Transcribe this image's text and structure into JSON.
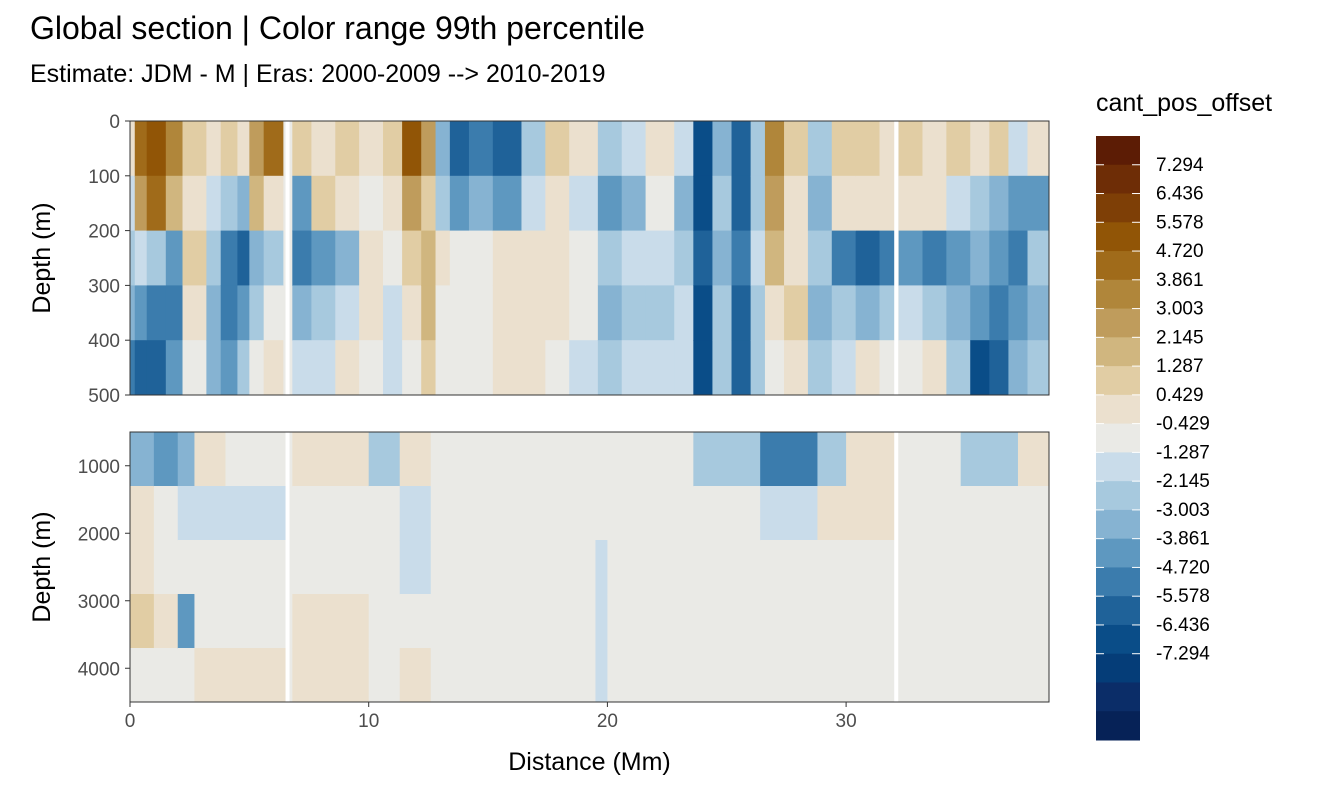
{
  "header": {
    "title": "Global section | Color range 99th percentile",
    "subtitle": "Estimate: JDM - M | Eras: 2000-2009 --> 2010-2019"
  },
  "chart_data": {
    "type": "heatmap",
    "title": "Global section | Color range 99th percentile",
    "subtitle": "Estimate: JDM - M | Eras: 2000-2009 --> 2010-2019",
    "xlabel": "Distance (Mm)",
    "ylabel": "Depth (m)",
    "xlim": [
      0,
      38.5
    ],
    "x_ticks": [
      0,
      10,
      20,
      30
    ],
    "panels": [
      {
        "name": "upper",
        "ylim": [
          0,
          500
        ],
        "y_ticks": [
          0,
          100,
          200,
          300,
          400,
          500
        ],
        "y_reversed": true
      },
      {
        "name": "lower",
        "ylim": [
          500,
          4500
        ],
        "y_ticks": [
          1000,
          2000,
          3000,
          4000
        ],
        "y_reversed": true
      }
    ],
    "legend": {
      "title": "cant_pos_offset",
      "position": "right",
      "labels": [
        "7.294",
        "6.436",
        "5.578",
        "4.720",
        "3.861",
        "3.003",
        "2.145",
        "1.287",
        "0.429",
        "-0.429",
        "-1.287",
        "-2.145",
        "-3.003",
        "-3.861",
        "-4.720",
        "-5.578",
        "-6.436",
        "-7.294"
      ],
      "colors": [
        "#5c1c05",
        "#6e2d06",
        "#7e3f06",
        "#915506",
        "#a06b1a",
        "#b0863a",
        "#bf9c5c",
        "#d0b67f",
        "#e1cda4",
        "#ebe0ce",
        "#eaeae6",
        "#c9dcea",
        "#a7c9de",
        "#86b3d2",
        "#5e98c0",
        "#3b7cad",
        "#1f6299",
        "#0a4d88",
        "#053d78",
        "#0b2d68",
        "#062257"
      ]
    },
    "column_breaks_x": [
      6.6,
      32.1
    ],
    "upper_columns": [
      {
        "x0": 0.0,
        "x1": 0.2,
        "values": [
          1,
          -1,
          -2,
          -3,
          -5
        ]
      },
      {
        "x0": 0.2,
        "x1": 0.7,
        "values": [
          6,
          4,
          -1,
          -4,
          -6
        ]
      },
      {
        "x0": 0.7,
        "x1": 1.5,
        "values": [
          7,
          6,
          -2,
          -5,
          -6
        ]
      },
      {
        "x0": 1.5,
        "x1": 2.2,
        "values": [
          5,
          3,
          -4,
          -5,
          -4
        ]
      },
      {
        "x0": 2.2,
        "x1": 3.2,
        "values": [
          2,
          1,
          2,
          1,
          0
        ]
      },
      {
        "x0": 3.2,
        "x1": 3.8,
        "values": [
          1,
          -1,
          -2,
          -3,
          -3
        ]
      },
      {
        "x0": 3.8,
        "x1": 4.5,
        "values": [
          2,
          -2,
          -5,
          -5,
          -4
        ]
      },
      {
        "x0": 4.5,
        "x1": 5.0,
        "values": [
          1,
          -3,
          -6,
          -4,
          -2
        ]
      },
      {
        "x0": 5.0,
        "x1": 5.6,
        "values": [
          4,
          3,
          -3,
          -2,
          0
        ]
      },
      {
        "x0": 5.6,
        "x1": 6.4,
        "values": [
          6,
          1,
          -2,
          0,
          1
        ]
      },
      {
        "x0": 6.8,
        "x1": 7.6,
        "values": [
          2,
          -4,
          -5,
          -3,
          -1
        ]
      },
      {
        "x0": 7.6,
        "x1": 8.6,
        "values": [
          1,
          2,
          -4,
          -2,
          -1
        ]
      },
      {
        "x0": 8.6,
        "x1": 9.6,
        "values": [
          2,
          1,
          -3,
          -1,
          1
        ]
      },
      {
        "x0": 9.6,
        "x1": 10.6,
        "values": [
          1,
          0,
          1,
          1,
          0
        ]
      },
      {
        "x0": 10.6,
        "x1": 11.4,
        "values": [
          2,
          1,
          0,
          -1,
          -1
        ]
      },
      {
        "x0": 11.4,
        "x1": 12.2,
        "values": [
          7,
          4,
          2,
          1,
          0
        ]
      },
      {
        "x0": 12.2,
        "x1": 12.8,
        "values": [
          4,
          2,
          3,
          3,
          2
        ]
      },
      {
        "x0": 12.8,
        "x1": 13.4,
        "values": [
          -3,
          -2,
          1,
          0,
          0
        ]
      },
      {
        "x0": 13.4,
        "x1": 14.2,
        "values": [
          -6,
          -4,
          0,
          0,
          0
        ]
      },
      {
        "x0": 14.2,
        "x1": 15.2,
        "values": [
          -5,
          -3,
          0,
          0,
          0
        ]
      },
      {
        "x0": 15.2,
        "x1": 16.4,
        "values": [
          -6,
          -4,
          1,
          1,
          1
        ]
      },
      {
        "x0": 16.4,
        "x1": 17.4,
        "values": [
          -2,
          -1,
          1,
          1,
          1
        ]
      },
      {
        "x0": 17.4,
        "x1": 18.4,
        "values": [
          2,
          1,
          1,
          1,
          0
        ]
      },
      {
        "x0": 18.4,
        "x1": 19.6,
        "values": [
          1,
          -1,
          0,
          0,
          -1
        ]
      },
      {
        "x0": 19.6,
        "x1": 20.6,
        "values": [
          -2,
          -4,
          -2,
          -3,
          -2
        ]
      },
      {
        "x0": 20.6,
        "x1": 21.6,
        "values": [
          -1,
          -3,
          -1,
          -2,
          -1
        ]
      },
      {
        "x0": 21.6,
        "x1": 22.8,
        "values": [
          1,
          0,
          -1,
          -2,
          -1
        ]
      },
      {
        "x0": 22.8,
        "x1": 23.6,
        "values": [
          -1,
          -3,
          -2,
          -1,
          -1
        ]
      },
      {
        "x0": 23.6,
        "x1": 24.4,
        "values": [
          -7,
          -7,
          -6,
          -7,
          -7
        ]
      },
      {
        "x0": 24.4,
        "x1": 25.2,
        "values": [
          -3,
          -2,
          -3,
          -2,
          -2
        ]
      },
      {
        "x0": 25.2,
        "x1": 26.0,
        "values": [
          -6,
          -6,
          -5,
          -6,
          -6
        ]
      },
      {
        "x0": 26.0,
        "x1": 26.6,
        "values": [
          -2,
          -2,
          -1,
          -2,
          -2
        ]
      },
      {
        "x0": 26.6,
        "x1": 27.4,
        "values": [
          5,
          4,
          3,
          1,
          0
        ]
      },
      {
        "x0": 27.4,
        "x1": 28.4,
        "values": [
          2,
          1,
          1,
          2,
          1
        ]
      },
      {
        "x0": 28.4,
        "x1": 29.4,
        "values": [
          -2,
          -3,
          -2,
          -3,
          -2
        ]
      },
      {
        "x0": 29.4,
        "x1": 30.4,
        "values": [
          2,
          1,
          -5,
          -2,
          -1
        ]
      },
      {
        "x0": 30.4,
        "x1": 31.4,
        "values": [
          2,
          1,
          -6,
          -3,
          1
        ]
      },
      {
        "x0": 31.4,
        "x1": 32.0,
        "values": [
          1,
          1,
          -5,
          -2,
          0
        ]
      },
      {
        "x0": 32.2,
        "x1": 33.2,
        "values": [
          2,
          1,
          -4,
          -1,
          0
        ]
      },
      {
        "x0": 33.2,
        "x1": 34.2,
        "values": [
          1,
          1,
          -5,
          -2,
          1
        ]
      },
      {
        "x0": 34.2,
        "x1": 35.2,
        "values": [
          2,
          -1,
          -4,
          -3,
          -2
        ]
      },
      {
        "x0": 35.2,
        "x1": 36.0,
        "values": [
          1,
          -2,
          -3,
          -4,
          -7
        ]
      },
      {
        "x0": 36.0,
        "x1": 36.8,
        "values": [
          2,
          -3,
          -4,
          -5,
          -6
        ]
      },
      {
        "x0": 36.8,
        "x1": 37.6,
        "values": [
          -1,
          -4,
          -5,
          -4,
          -3
        ]
      },
      {
        "x0": 37.6,
        "x1": 38.5,
        "values": [
          1,
          -4,
          -2,
          -3,
          -2
        ]
      }
    ],
    "lower_columns": [
      {
        "x0": 0.0,
        "x1": 1.0,
        "values": [
          -3,
          1,
          1,
          2,
          0
        ]
      },
      {
        "x0": 1.0,
        "x1": 2.0,
        "values": [
          -4,
          0,
          0,
          1,
          0
        ]
      },
      {
        "x0": 2.0,
        "x1": 2.7,
        "values": [
          -3,
          -1,
          0,
          -4,
          0
        ]
      },
      {
        "x0": 2.7,
        "x1": 4.0,
        "values": [
          1,
          -1,
          0,
          0,
          1
        ]
      },
      {
        "x0": 4.0,
        "x1": 6.6,
        "values": [
          0,
          -1,
          0,
          0,
          1
        ]
      },
      {
        "x0": 6.8,
        "x1": 10.0,
        "values": [
          1,
          0,
          0,
          1,
          1
        ]
      },
      {
        "x0": 10.0,
        "x1": 11.3,
        "values": [
          -2,
          0,
          0,
          0,
          0
        ]
      },
      {
        "x0": 11.3,
        "x1": 12.6,
        "values": [
          1,
          -1,
          -1,
          0,
          1
        ]
      },
      {
        "x0": 12.6,
        "x1": 19.5,
        "values": [
          0,
          0,
          0,
          0,
          0
        ]
      },
      {
        "x0": 19.5,
        "x1": 20.0,
        "values": [
          0,
          0,
          -1,
          -1,
          -1
        ]
      },
      {
        "x0": 20.0,
        "x1": 23.6,
        "values": [
          0,
          0,
          0,
          0,
          0
        ]
      },
      {
        "x0": 23.6,
        "x1": 26.4,
        "values": [
          -2,
          0,
          0,
          0,
          0
        ]
      },
      {
        "x0": 26.4,
        "x1": 28.8,
        "values": [
          -5,
          -1,
          0,
          0,
          0
        ]
      },
      {
        "x0": 28.8,
        "x1": 30.0,
        "values": [
          -2,
          1,
          0,
          0,
          0
        ]
      },
      {
        "x0": 30.0,
        "x1": 32.0,
        "values": [
          1,
          1,
          0,
          0,
          0
        ]
      },
      {
        "x0": 32.2,
        "x1": 34.8,
        "values": [
          0,
          0,
          0,
          0,
          0
        ]
      },
      {
        "x0": 34.8,
        "x1": 37.2,
        "values": [
          -2,
          0,
          0,
          0,
          0
        ]
      },
      {
        "x0": 37.2,
        "x1": 38.5,
        "values": [
          1,
          0,
          0,
          0,
          0
        ]
      }
    ]
  }
}
